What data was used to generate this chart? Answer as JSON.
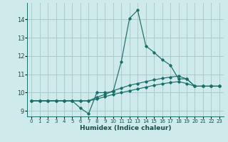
{
  "xlabel": "Humidex (Indice chaleur)",
  "background_color": "#ceeaea",
  "grid_color": "#aacccc",
  "line_color": "#1a6e6a",
  "xlim": [
    -0.5,
    23.5
  ],
  "ylim": [
    8.7,
    14.9
  ],
  "xticks": [
    0,
    1,
    2,
    3,
    4,
    5,
    6,
    7,
    8,
    9,
    10,
    11,
    12,
    13,
    14,
    15,
    16,
    17,
    18,
    19,
    20,
    21,
    22,
    23
  ],
  "yticks": [
    9,
    10,
    11,
    12,
    13,
    14
  ],
  "series": [
    [
      9.55,
      9.55,
      9.55,
      9.55,
      9.55,
      9.55,
      9.15,
      8.85,
      10.0,
      10.0,
      10.05,
      11.7,
      14.05,
      14.5,
      12.55,
      12.2,
      11.8,
      11.5,
      10.75,
      10.75,
      10.35,
      10.35,
      10.35,
      10.35
    ],
    [
      9.55,
      9.55,
      9.55,
      9.55,
      9.55,
      9.55,
      9.55,
      9.55,
      9.75,
      9.9,
      10.1,
      10.25,
      10.4,
      10.5,
      10.6,
      10.7,
      10.78,
      10.85,
      10.9,
      10.75,
      10.35,
      10.35,
      10.35,
      10.35
    ],
    [
      9.55,
      9.55,
      9.55,
      9.55,
      9.55,
      9.55,
      9.55,
      9.55,
      9.65,
      9.78,
      9.9,
      10.0,
      10.1,
      10.2,
      10.3,
      10.4,
      10.48,
      10.55,
      10.6,
      10.5,
      10.35,
      10.35,
      10.35,
      10.35
    ]
  ]
}
